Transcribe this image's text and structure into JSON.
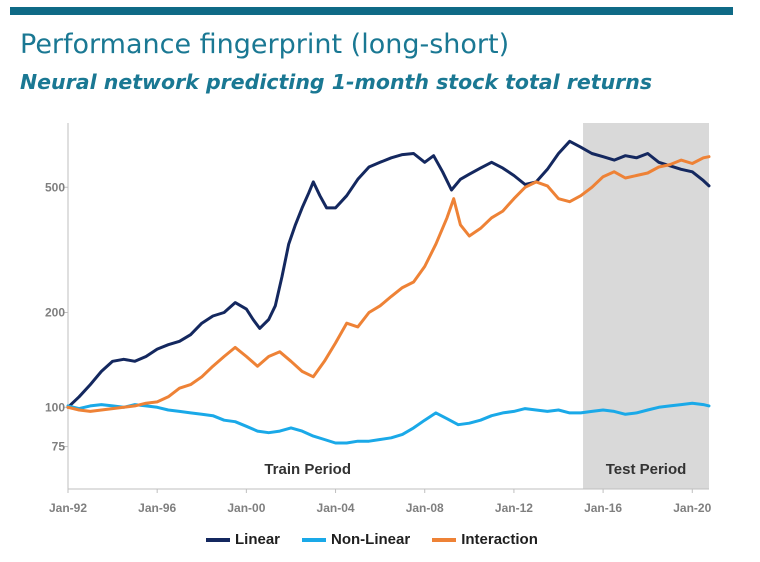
{
  "header": {
    "title": "Performance fingerprint (long-short)",
    "subtitle": "Neural network predicting 1-month stock total returns"
  },
  "colors": {
    "brand": "#0f6a86",
    "linear": "#14285f",
    "nonlinear": "#1aa9e8",
    "interaction": "#ee8236",
    "test_shade": "#d9d9d9"
  },
  "chart_data": {
    "type": "line",
    "title": "Performance fingerprint (long-short)",
    "subtitle": "Neural network predicting 1-month stock total returns",
    "yscale": "log",
    "ylim": [
      55,
      800
    ],
    "xlim": [
      1992.0,
      2020.75
    ],
    "yticks": [
      {
        "value": 75,
        "label": "75"
      },
      {
        "value": 100,
        "label": "100"
      },
      {
        "value": 200,
        "label": "200"
      },
      {
        "value": 500,
        "label": "500"
      }
    ],
    "xticks": [
      {
        "value": 1992,
        "label": "Jan-92"
      },
      {
        "value": 1996,
        "label": "Jan-96"
      },
      {
        "value": 2000,
        "label": "Jan-00"
      },
      {
        "value": 2004,
        "label": "Jan-04"
      },
      {
        "value": 2008,
        "label": "Jan-08"
      },
      {
        "value": 2012,
        "label": "Jan-12"
      },
      {
        "value": 2016,
        "label": "Jan-16"
      },
      {
        "value": 2020,
        "label": "Jan-20"
      }
    ],
    "shaded_regions": [
      {
        "label": "Train Period",
        "start": 1992.0,
        "end": 2015.1,
        "shaded": false
      },
      {
        "label": "Test Period",
        "start": 2015.1,
        "end": 2020.75,
        "shaded": true
      }
    ],
    "series": [
      {
        "name": "Linear",
        "color": "#14285f",
        "points": [
          [
            1992.0,
            100
          ],
          [
            1992.5,
            108
          ],
          [
            1993.0,
            118
          ],
          [
            1993.5,
            130
          ],
          [
            1994.0,
            140
          ],
          [
            1994.5,
            142
          ],
          [
            1995.0,
            140
          ],
          [
            1995.5,
            145
          ],
          [
            1996.0,
            153
          ],
          [
            1996.5,
            158
          ],
          [
            1997.0,
            162
          ],
          [
            1997.5,
            170
          ],
          [
            1998.0,
            185
          ],
          [
            1998.5,
            195
          ],
          [
            1999.0,
            200
          ],
          [
            1999.5,
            215
          ],
          [
            2000.0,
            205
          ],
          [
            2000.3,
            190
          ],
          [
            2000.6,
            178
          ],
          [
            2001.0,
            190
          ],
          [
            2001.3,
            210
          ],
          [
            2001.6,
            260
          ],
          [
            2001.9,
            330
          ],
          [
            2002.2,
            380
          ],
          [
            2002.5,
            430
          ],
          [
            2002.8,
            480
          ],
          [
            2003.0,
            520
          ],
          [
            2003.3,
            470
          ],
          [
            2003.6,
            430
          ],
          [
            2004.0,
            430
          ],
          [
            2004.5,
            470
          ],
          [
            2005.0,
            530
          ],
          [
            2005.5,
            580
          ],
          [
            2006.0,
            600
          ],
          [
            2006.5,
            620
          ],
          [
            2007.0,
            635
          ],
          [
            2007.5,
            640
          ],
          [
            2008.0,
            600
          ],
          [
            2008.4,
            630
          ],
          [
            2008.8,
            560
          ],
          [
            2009.2,
            490
          ],
          [
            2009.6,
            530
          ],
          [
            2010.0,
            550
          ],
          [
            2010.5,
            575
          ],
          [
            2011.0,
            600
          ],
          [
            2011.5,
            575
          ],
          [
            2012.0,
            545
          ],
          [
            2012.5,
            510
          ],
          [
            2013.0,
            520
          ],
          [
            2013.5,
            570
          ],
          [
            2014.0,
            640
          ],
          [
            2014.5,
            700
          ],
          [
            2015.0,
            670
          ],
          [
            2015.5,
            640
          ],
          [
            2016.0,
            625
          ],
          [
            2016.5,
            610
          ],
          [
            2017.0,
            630
          ],
          [
            2017.5,
            620
          ],
          [
            2018.0,
            640
          ],
          [
            2018.5,
            600
          ],
          [
            2019.0,
            585
          ],
          [
            2019.5,
            570
          ],
          [
            2020.0,
            560
          ],
          [
            2020.5,
            525
          ],
          [
            2020.75,
            505
          ]
        ]
      },
      {
        "name": "Non-Linear",
        "color": "#1aa9e8",
        "points": [
          [
            1992.0,
            101
          ],
          [
            1992.5,
            99
          ],
          [
            1993.0,
            101
          ],
          [
            1993.5,
            102
          ],
          [
            1994.0,
            101
          ],
          [
            1994.5,
            100
          ],
          [
            1995.0,
            102
          ],
          [
            1995.5,
            101
          ],
          [
            1996.0,
            100
          ],
          [
            1996.5,
            98
          ],
          [
            1997.0,
            97
          ],
          [
            1997.5,
            96
          ],
          [
            1998.0,
            95
          ],
          [
            1998.5,
            94
          ],
          [
            1999.0,
            91
          ],
          [
            1999.5,
            90
          ],
          [
            2000.0,
            87
          ],
          [
            2000.5,
            84
          ],
          [
            2001.0,
            83
          ],
          [
            2001.5,
            84
          ],
          [
            2002.0,
            86
          ],
          [
            2002.5,
            84
          ],
          [
            2003.0,
            81
          ],
          [
            2003.5,
            79
          ],
          [
            2004.0,
            77
          ],
          [
            2004.5,
            77
          ],
          [
            2005.0,
            78
          ],
          [
            2005.5,
            78
          ],
          [
            2006.0,
            79
          ],
          [
            2006.5,
            80
          ],
          [
            2007.0,
            82
          ],
          [
            2007.5,
            86
          ],
          [
            2008.0,
            91
          ],
          [
            2008.5,
            96
          ],
          [
            2009.0,
            92
          ],
          [
            2009.5,
            88
          ],
          [
            2010.0,
            89
          ],
          [
            2010.5,
            91
          ],
          [
            2011.0,
            94
          ],
          [
            2011.5,
            96
          ],
          [
            2012.0,
            97
          ],
          [
            2012.5,
            99
          ],
          [
            2013.0,
            98
          ],
          [
            2013.5,
            97
          ],
          [
            2014.0,
            98
          ],
          [
            2014.5,
            96
          ],
          [
            2015.0,
            96
          ],
          [
            2015.5,
            97
          ],
          [
            2016.0,
            98
          ],
          [
            2016.5,
            97
          ],
          [
            2017.0,
            95
          ],
          [
            2017.5,
            96
          ],
          [
            2018.0,
            98
          ],
          [
            2018.5,
            100
          ],
          [
            2019.0,
            101
          ],
          [
            2019.5,
            102
          ],
          [
            2020.0,
            103
          ],
          [
            2020.5,
            102
          ],
          [
            2020.75,
            101
          ]
        ]
      },
      {
        "name": "Interaction",
        "color": "#ee8236",
        "points": [
          [
            1992.0,
            100
          ],
          [
            1992.5,
            98
          ],
          [
            1993.0,
            97
          ],
          [
            1993.5,
            98
          ],
          [
            1994.0,
            99
          ],
          [
            1994.5,
            100
          ],
          [
            1995.0,
            101
          ],
          [
            1995.5,
            103
          ],
          [
            1996.0,
            104
          ],
          [
            1996.5,
            108
          ],
          [
            1997.0,
            115
          ],
          [
            1997.5,
            118
          ],
          [
            1998.0,
            125
          ],
          [
            1998.5,
            135
          ],
          [
            1999.0,
            145
          ],
          [
            1999.5,
            155
          ],
          [
            2000.0,
            145
          ],
          [
            2000.5,
            135
          ],
          [
            2001.0,
            145
          ],
          [
            2001.5,
            150
          ],
          [
            2002.0,
            140
          ],
          [
            2002.5,
            130
          ],
          [
            2003.0,
            125
          ],
          [
            2003.5,
            140
          ],
          [
            2004.0,
            160
          ],
          [
            2004.5,
            185
          ],
          [
            2005.0,
            180
          ],
          [
            2005.5,
            200
          ],
          [
            2006.0,
            210
          ],
          [
            2006.5,
            225
          ],
          [
            2007.0,
            240
          ],
          [
            2007.5,
            250
          ],
          [
            2008.0,
            280
          ],
          [
            2008.5,
            330
          ],
          [
            2009.0,
            400
          ],
          [
            2009.3,
            460
          ],
          [
            2009.6,
            380
          ],
          [
            2010.0,
            350
          ],
          [
            2010.5,
            370
          ],
          [
            2011.0,
            400
          ],
          [
            2011.5,
            420
          ],
          [
            2012.0,
            460
          ],
          [
            2012.5,
            500
          ],
          [
            2013.0,
            520
          ],
          [
            2013.5,
            505
          ],
          [
            2014.0,
            460
          ],
          [
            2014.5,
            450
          ],
          [
            2015.0,
            470
          ],
          [
            2015.5,
            500
          ],
          [
            2016.0,
            540
          ],
          [
            2016.5,
            560
          ],
          [
            2017.0,
            535
          ],
          [
            2017.5,
            545
          ],
          [
            2018.0,
            555
          ],
          [
            2018.5,
            580
          ],
          [
            2019.0,
            590
          ],
          [
            2019.5,
            610
          ],
          [
            2020.0,
            595
          ],
          [
            2020.5,
            620
          ],
          [
            2020.75,
            625
          ]
        ]
      }
    ]
  }
}
